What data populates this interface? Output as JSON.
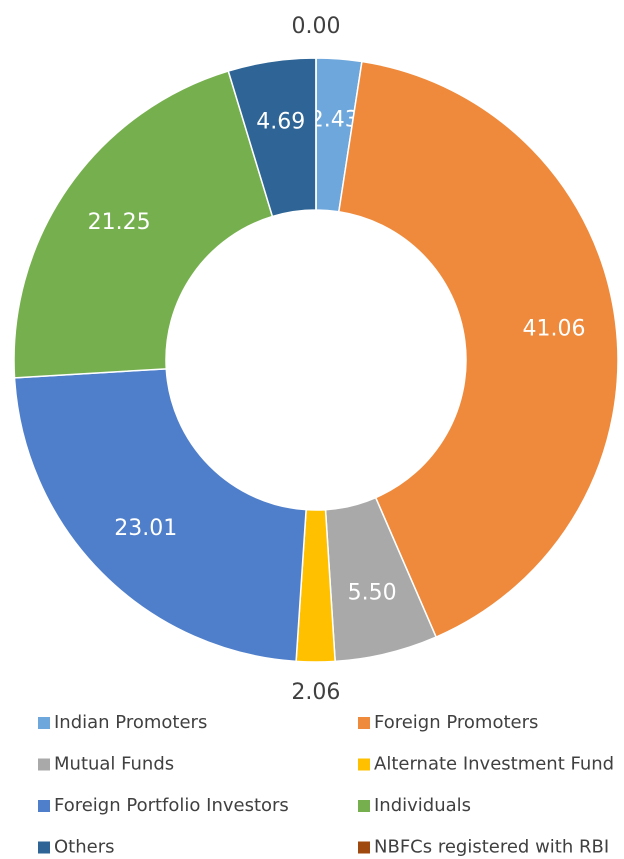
{
  "chart_data": {
    "type": "donut",
    "categories": [
      "Indian Promoters",
      "Foreign Promoters",
      "Mutual Funds",
      "Alternate Investment Fund",
      "Foreign Portfolio Investors",
      "Individuals",
      "Others",
      "NBFCs registered with RBI"
    ],
    "values": [
      2.43,
      41.06,
      5.5,
      2.06,
      23.01,
      21.25,
      4.69,
      0
    ],
    "value_labels": [
      "2.43",
      "41.06",
      "5.50",
      "2.06",
      "23.01",
      "21.25",
      "4.69",
      "0.00"
    ],
    "colors": [
      "#6ea7dc",
      "#ef8a3c",
      "#a9a9a9",
      "#ffc000",
      "#4f7fcb",
      "#76b04e",
      "#2e6596",
      "#a0490f"
    ]
  }
}
